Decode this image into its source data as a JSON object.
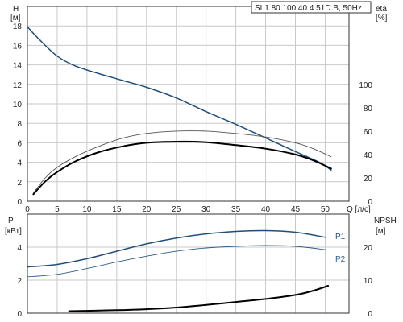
{
  "chart_data": [
    {
      "type": "line",
      "title": "SL1.80.100.40.4.51D.B, 50Hz",
      "xlabel": "Q [л/с]",
      "x_unit": "[л/с]",
      "xlim": [
        0,
        54
      ],
      "x_ticks": [
        0,
        5,
        10,
        15,
        20,
        25,
        30,
        35,
        40,
        45,
        50
      ],
      "grid": true,
      "left_axis": {
        "label": "H",
        "unit": "[м]",
        "ylim": [
          0,
          20
        ],
        "ticks": [
          0,
          2,
          4,
          6,
          8,
          10,
          12,
          14,
          16,
          18
        ]
      },
      "right_axis": {
        "label": "eta",
        "unit": "[%]",
        "ylim": [
          0,
          166.7
        ],
        "ticks": [
          0,
          20,
          40,
          60,
          80,
          100
        ]
      },
      "series": [
        {
          "axis": "left",
          "color": "#1f4e79",
          "x": [
            0,
            2,
            5,
            8,
            12,
            16,
            20,
            25,
            30,
            35,
            40,
            45,
            49,
            51
          ],
          "y": [
            17.9,
            16.6,
            14.9,
            13.9,
            13.1,
            12.4,
            11.7,
            10.6,
            9.2,
            7.9,
            6.5,
            5.1,
            4.0,
            3.2
          ]
        },
        {
          "axis": "right",
          "color": "#000000",
          "x": [
            1,
            3,
            5,
            8,
            12,
            16,
            20,
            25,
            30,
            35,
            40,
            45,
            48,
            51
          ],
          "y": [
            6,
            17,
            25,
            34,
            42,
            47,
            50,
            51,
            50.5,
            48,
            45,
            40,
            35,
            28
          ]
        },
        {
          "axis": "right",
          "color": "#555555",
          "x": [
            1,
            3,
            5,
            8,
            12,
            16,
            20,
            25,
            30,
            35,
            40,
            45,
            48,
            51
          ],
          "y": [
            7,
            20,
            29,
            38,
            47,
            54,
            58,
            60,
            60,
            58,
            55,
            50,
            45,
            38
          ]
        }
      ]
    },
    {
      "type": "line",
      "xlim": [
        0,
        54
      ],
      "x_ticks": [
        0,
        5,
        10,
        15,
        20,
        25,
        30,
        35,
        40,
        45,
        50
      ],
      "grid": true,
      "left_axis": {
        "label": "P",
        "unit": "[кВт]",
        "ylim": [
          0,
          6
        ],
        "ticks": [
          0,
          2,
          4
        ]
      },
      "right_axis": {
        "label": "NPSH",
        "unit": "[м]",
        "ylim": [
          0,
          30
        ],
        "ticks": [
          0,
          10,
          20
        ]
      },
      "series": [
        {
          "name": "P1",
          "axis": "left",
          "color": "#1f4e79",
          "x": [
            0,
            5,
            10,
            15,
            20,
            25,
            30,
            35,
            40,
            45,
            50
          ],
          "y": [
            2.8,
            2.95,
            3.3,
            3.75,
            4.2,
            4.55,
            4.8,
            4.95,
            5.0,
            4.9,
            4.6
          ]
        },
        {
          "name": "P2",
          "axis": "left",
          "color": "#2e5c8a",
          "x": [
            0,
            5,
            10,
            15,
            20,
            25,
            30,
            35,
            40,
            45,
            50
          ],
          "y": [
            2.2,
            2.35,
            2.7,
            3.1,
            3.45,
            3.75,
            3.95,
            4.05,
            4.1,
            4.05,
            3.85
          ]
        },
        {
          "axis": "right",
          "color": "#000000",
          "x": [
            7,
            15,
            20,
            25,
            30,
            35,
            40,
            45,
            48,
            50.5
          ],
          "y": [
            0.6,
            0.9,
            1.2,
            1.7,
            2.5,
            3.4,
            4.3,
            5.5,
            6.8,
            8.3
          ]
        }
      ]
    }
  ]
}
